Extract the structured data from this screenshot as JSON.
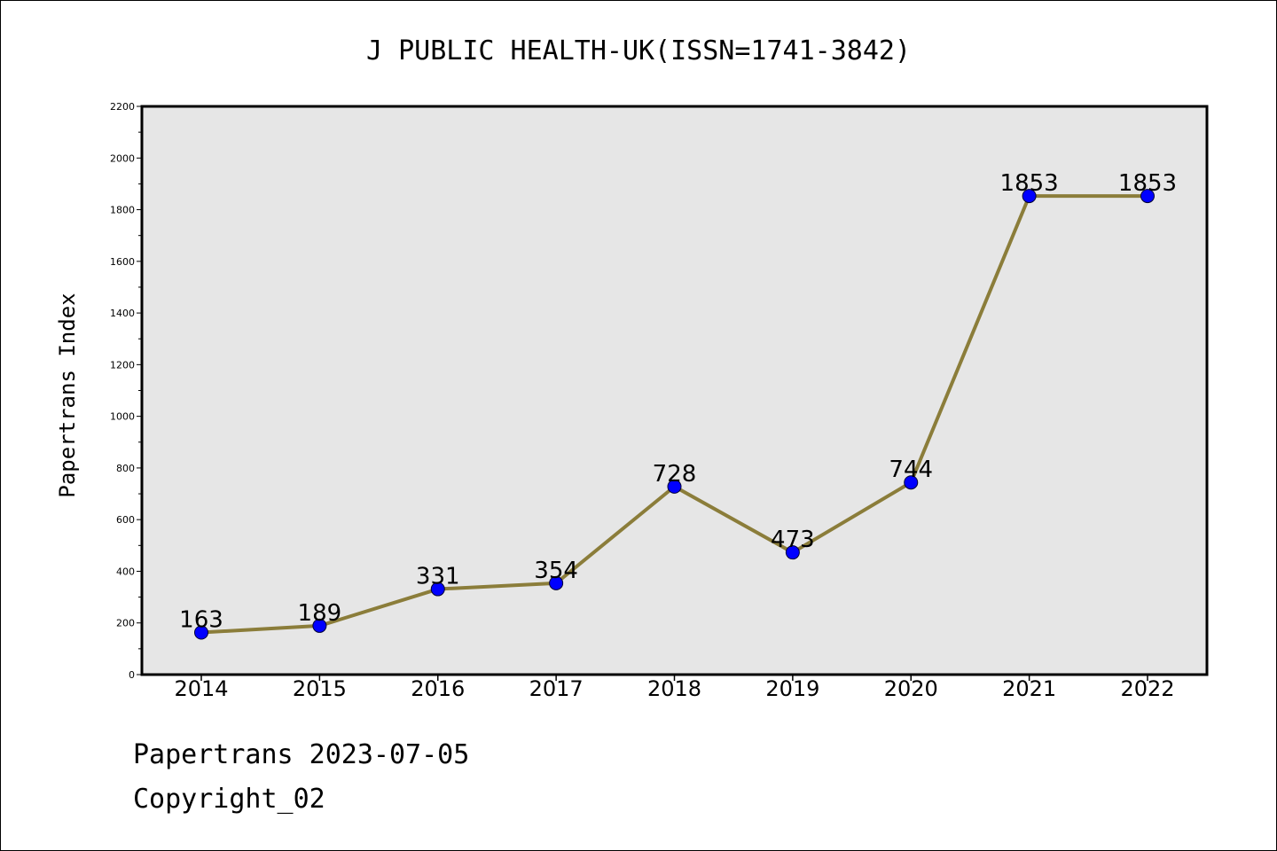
{
  "chart_data": {
    "type": "line",
    "title": "J PUBLIC HEALTH-UK(ISSN=1741-3842)",
    "xlabel": "",
    "ylabel": "Papertrans Index",
    "categories": [
      "2014",
      "2015",
      "2016",
      "2017",
      "2018",
      "2019",
      "2020",
      "2021",
      "2022"
    ],
    "values": [
      163,
      189,
      331,
      354,
      728,
      473,
      744,
      1853,
      1853
    ],
    "ylim": [
      0,
      2200
    ],
    "yticks": [
      0,
      200,
      400,
      600,
      800,
      1000,
      1200,
      1400,
      1600,
      1800,
      2000,
      2200
    ],
    "grid": false,
    "legend": "none",
    "colors": {
      "line": "#8b7d3a",
      "marker": "#0000ff",
      "plot_background": "#e6e6e6"
    }
  },
  "footer": {
    "line1": "Papertrans 2023-07-05",
    "line2": "Copyright_02"
  }
}
